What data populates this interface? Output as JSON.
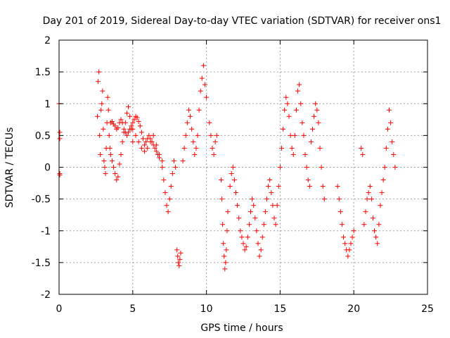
{
  "chart_data": {
    "type": "scatter",
    "title": "Day 201 of 2019, Sidereal Day-to-day VTEC variation (SDTVAR) for receiver ons1",
    "xlabel": "GPS time / hours",
    "ylabel": "SDTVAR / TECUs",
    "xlim": [
      0,
      25
    ],
    "ylim": [
      -2,
      2
    ],
    "xticks": [
      0,
      5,
      10,
      15,
      20,
      25
    ],
    "yticks": [
      -2,
      -1.5,
      -1,
      -0.5,
      0,
      0.5,
      1,
      1.5,
      2
    ],
    "xtick_labels": [
      "0",
      "5",
      "10",
      "15",
      "20",
      "25"
    ],
    "ytick_labels": [
      "-2",
      "-1.5",
      "-1",
      "-0.5",
      "0",
      "0.5",
      "1",
      "1.5",
      "2"
    ],
    "grid": true,
    "marker": "plus",
    "color": "#ff0000",
    "series": [
      {
        "name": "ons1",
        "x": [
          0.0,
          0.05,
          0.05,
          0.05,
          0.05,
          2.6,
          2.65,
          2.7,
          2.75,
          2.8,
          2.85,
          2.9,
          2.95,
          3.0,
          3.05,
          3.1,
          3.15,
          3.2,
          3.25,
          3.3,
          3.35,
          3.4,
          3.45,
          3.5,
          3.6,
          3.7,
          3.8,
          3.9,
          4.0,
          4.1,
          4.2,
          4.3,
          4.4,
          4.5,
          4.6,
          4.7,
          4.8,
          4.9,
          5.0,
          3.5,
          3.6,
          3.7,
          3.8,
          3.9,
          4.0,
          4.1,
          4.2,
          4.3,
          4.4,
          4.5,
          4.6,
          4.7,
          4.8,
          4.9,
          5.0,
          5.1,
          5.2,
          5.3,
          5.4,
          5.5,
          5.6,
          5.7,
          5.8,
          5.9,
          6.0,
          6.1,
          6.2,
          6.3,
          6.4,
          6.5,
          6.6,
          6.7,
          6.8,
          5.0,
          5.2,
          5.4,
          5.6,
          5.8,
          6.0,
          6.2,
          6.4,
          6.6,
          6.8,
          7.0,
          7.0,
          7.1,
          7.2,
          7.3,
          7.4,
          7.5,
          7.6,
          7.7,
          7.8,
          7.9,
          8.0,
          8.05,
          8.1,
          8.15,
          8.2,
          8.25,
          8.4,
          8.5,
          8.6,
          8.7,
          8.8,
          8.9,
          9.0,
          9.1,
          9.2,
          9.3,
          9.4,
          9.5,
          9.6,
          9.7,
          9.8,
          9.9,
          10.0,
          10.2,
          10.3,
          10.4,
          10.5,
          10.6,
          10.7,
          11.0,
          11.05,
          11.1,
          11.15,
          11.2,
          11.25,
          11.3,
          11.35,
          11.4,
          11.45,
          11.6,
          11.7,
          11.8,
          11.9,
          12.0,
          12.1,
          12.2,
          12.3,
          12.4,
          12.5,
          12.6,
          12.7,
          12.8,
          12.9,
          13.0,
          13.1,
          13.2,
          13.3,
          13.4,
          13.5,
          13.6,
          13.7,
          13.8,
          13.9,
          14.0,
          14.1,
          14.2,
          14.3,
          14.4,
          14.5,
          14.6,
          14.7,
          14.8,
          14.9,
          15.0,
          15.1,
          15.2,
          15.3,
          15.4,
          15.5,
          15.6,
          15.7,
          15.8,
          15.9,
          16.0,
          16.1,
          16.2,
          16.3,
          16.4,
          16.5,
          16.6,
          16.7,
          16.8,
          16.9,
          17.0,
          17.1,
          17.2,
          17.3,
          17.4,
          17.5,
          17.6,
          17.7,
          17.8,
          17.9,
          18.0,
          18.9,
          19.0,
          19.1,
          19.2,
          19.3,
          19.4,
          19.5,
          19.6,
          19.7,
          19.8,
          19.9,
          20.0,
          20.5,
          20.6,
          20.7,
          20.8,
          20.9,
          21.0,
          21.1,
          21.2,
          21.3,
          21.4,
          21.5,
          21.6,
          21.7,
          21.8,
          21.9,
          22.0,
          22.1,
          22.2,
          22.3,
          22.4,
          22.5,
          22.6,
          22.7,
          22.8
        ],
        "y": [
          1.0,
          0.55,
          0.45,
          -0.1,
          -0.12,
          0.8,
          1.35,
          1.5,
          0.5,
          0.2,
          0.9,
          1.0,
          1.2,
          0.6,
          0.1,
          0.0,
          -0.1,
          0.3,
          0.7,
          1.1,
          0.9,
          0.5,
          0.3,
          0.2,
          0.1,
          0.0,
          -0.1,
          -0.2,
          -0.15,
          0.05,
          0.2,
          0.4,
          0.55,
          0.7,
          0.85,
          0.95,
          0.8,
          0.6,
          0.4,
          0.7,
          0.72,
          0.68,
          0.65,
          0.6,
          0.62,
          0.7,
          0.75,
          0.7,
          0.6,
          0.55,
          0.5,
          0.55,
          0.6,
          0.65,
          0.7,
          0.75,
          0.8,
          0.78,
          0.72,
          0.65,
          0.55,
          0.45,
          0.35,
          0.4,
          0.45,
          0.5,
          0.45,
          0.4,
          0.35,
          0.3,
          0.25,
          0.2,
          0.15,
          0.6,
          0.5,
          0.4,
          0.3,
          0.25,
          0.3,
          0.4,
          0.5,
          0.35,
          0.2,
          0.1,
          0.0,
          -0.2,
          -0.4,
          -0.6,
          -0.7,
          -0.5,
          -0.3,
          -0.1,
          0.1,
          0.0,
          -1.3,
          -1.4,
          -1.5,
          -1.55,
          -1.45,
          -1.35,
          0.1,
          0.3,
          0.5,
          0.7,
          0.9,
          0.8,
          0.6,
          0.4,
          0.2,
          0.3,
          0.5,
          0.9,
          1.2,
          1.4,
          1.6,
          1.3,
          1.1,
          0.7,
          0.5,
          0.3,
          0.2,
          0.4,
          0.5,
          -0.2,
          -0.5,
          -0.9,
          -1.2,
          -1.4,
          -1.6,
          -1.5,
          -1.3,
          -1.0,
          -0.7,
          -0.3,
          -0.1,
          0.0,
          -0.2,
          -0.4,
          -0.6,
          -0.8,
          -1.0,
          -1.1,
          -1.2,
          -1.3,
          -1.25,
          -1.1,
          -0.9,
          -0.7,
          -0.5,
          -0.6,
          -0.8,
          -1.0,
          -1.2,
          -1.4,
          -1.3,
          -1.1,
          -0.9,
          -0.7,
          -0.5,
          -0.3,
          -0.2,
          -0.4,
          -0.6,
          -0.8,
          -0.9,
          -0.6,
          -0.3,
          0.0,
          0.3,
          0.6,
          0.9,
          1.1,
          1.0,
          0.8,
          0.5,
          0.3,
          0.2,
          0.5,
          0.9,
          1.2,
          1.3,
          1.0,
          0.7,
          0.5,
          0.2,
          0.0,
          -0.2,
          -0.3,
          0.4,
          0.6,
          0.8,
          1.0,
          0.9,
          0.7,
          0.3,
          0.0,
          -0.3,
          -0.5,
          -0.3,
          -0.5,
          -0.7,
          -0.9,
          -1.1,
          -1.2,
          -1.3,
          -1.4,
          -1.3,
          -1.2,
          -1.1,
          -1.0,
          0.3,
          0.2,
          -0.9,
          -0.7,
          -0.5,
          -0.4,
          -0.3,
          -0.5,
          -0.8,
          -1.0,
          -1.1,
          -1.2,
          -0.9,
          -0.6,
          -0.4,
          -0.2,
          0.0,
          0.3,
          0.6,
          0.9,
          0.7,
          0.4,
          0.2,
          0.0
        ]
      }
    ]
  }
}
